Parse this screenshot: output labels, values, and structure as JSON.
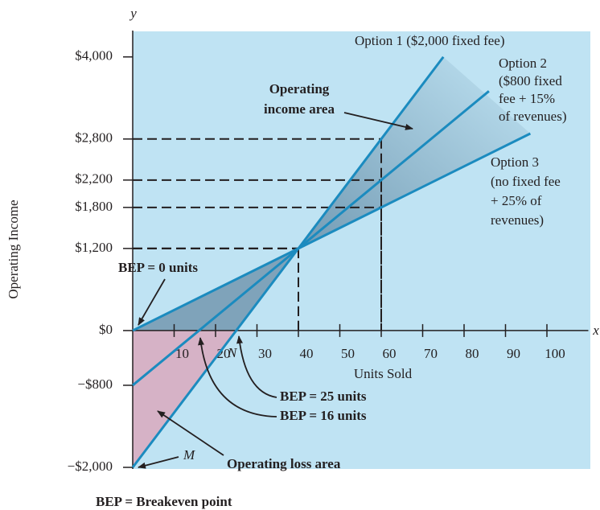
{
  "chart_data": {
    "type": "line",
    "xlabel": "Units Sold",
    "ylabel": "Operating Income",
    "x_axis_letter": "x",
    "y_axis_letter": "y",
    "xlim": [
      0,
      110
    ],
    "ylim": [
      -2000,
      4350
    ],
    "xticks": [
      10,
      20,
      30,
      40,
      50,
      60,
      70,
      80,
      90,
      100
    ],
    "yticks": [
      {
        "value": 4000,
        "label": "$4,000"
      },
      {
        "value": 2800,
        "label": "$2,800"
      },
      {
        "value": 2200,
        "label": "$2,200"
      },
      {
        "value": 1800,
        "label": "$1,800"
      },
      {
        "value": 1200,
        "label": "$1,200"
      },
      {
        "value": 0,
        "label": "$0"
      },
      {
        "value": -800,
        "label": "−$800"
      },
      {
        "value": -2000,
        "label": "−$2,000"
      }
    ],
    "reference_x": [
      40,
      60
    ],
    "background": "#bfe3f3",
    "series": [
      {
        "name": [
          "Option 1 ($2,000 fixed fee)"
        ],
        "color": "#1b8bbf",
        "x": [
          0,
          40,
          60,
          75
        ],
        "values": [
          -2000,
          1200,
          2800,
          4000
        ]
      },
      {
        "name": [
          "Option 2",
          "($800 fixed",
          "fee + 15%",
          "of revenues)"
        ],
        "color": "#1b8bbf",
        "x": [
          0,
          16,
          40,
          60,
          86
        ],
        "values": [
          -800,
          0,
          1200,
          2200,
          3500
        ]
      },
      {
        "name": [
          "Option 3",
          "(no fixed fee",
          "+ 25% of",
          "revenues)"
        ],
        "color": "#1b8bbf",
        "x": [
          0,
          40,
          60,
          96
        ],
        "values": [
          0,
          1200,
          1800,
          2880
        ]
      }
    ],
    "annotations": {
      "income_area": [
        "Operating",
        "income area"
      ],
      "bep_0": "BEP = 0 units",
      "bep_25": "BEP = 25 units",
      "bep_16": "BEP = 16 units",
      "loss_area": "Operating loss area",
      "point_m": "M",
      "point_n": "N",
      "footnote": "BEP = Breakeven point"
    }
  }
}
